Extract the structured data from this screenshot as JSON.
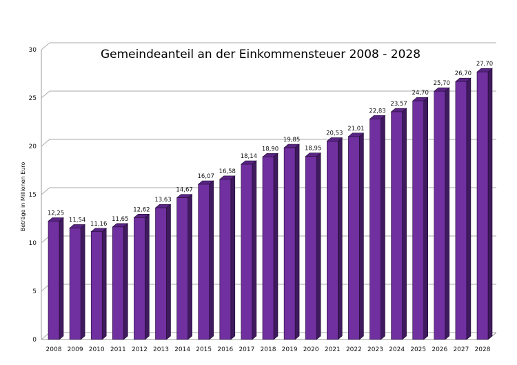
{
  "chart_data": {
    "type": "bar",
    "title": "Gemeindeanteil an der Einkommensteuer 2008 - 2028",
    "xlabel": "",
    "ylabel": "Beträge in Millionen Euro",
    "ylim": [
      0,
      30
    ],
    "yticks": [
      0,
      5,
      10,
      15,
      20,
      25,
      30
    ],
    "grid": true,
    "style": "3d",
    "bar_color": "#7030a0",
    "bar_side_color": "#3f1a5e",
    "bar_top_color": "#5a2585",
    "categories": [
      "2008",
      "2009",
      "2010",
      "2011",
      "2012",
      "2013",
      "2014",
      "2015",
      "2016",
      "2017",
      "2018",
      "2019",
      "2020",
      "2021",
      "2022",
      "2023",
      "2024",
      "2025",
      "2026",
      "2027",
      "2028"
    ],
    "values": [
      12.25,
      11.54,
      11.16,
      11.65,
      12.62,
      13.63,
      14.67,
      16.07,
      16.58,
      18.14,
      18.9,
      19.85,
      18.95,
      20.53,
      21.01,
      22.83,
      23.57,
      24.7,
      25.7,
      26.7,
      27.7
    ],
    "data_labels": [
      "12,25",
      "11,54",
      "11,16",
      "11,65",
      "12,62",
      "13,63",
      "14,67",
      "16,07",
      "16,58",
      "18,14",
      "18,90",
      "19,85",
      "18,95",
      "20,53",
      "21,01",
      "22,83",
      "23,57",
      "24,70",
      "25,70",
      "26,70",
      "27,70"
    ]
  }
}
